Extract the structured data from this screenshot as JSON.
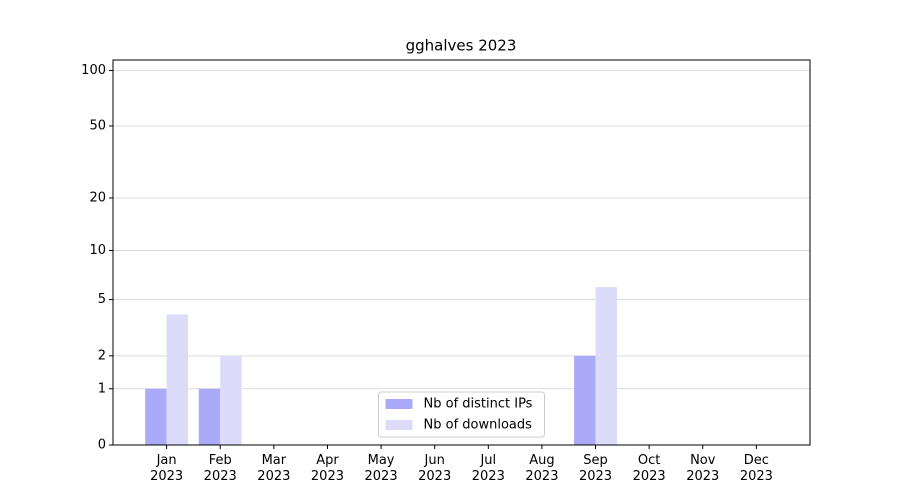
{
  "chart_data": {
    "type": "bar",
    "title": "gghalves 2023",
    "categories": [
      "Jan\n2023",
      "Feb\n2023",
      "Mar\n2023",
      "Apr\n2023",
      "May\n2023",
      "Jun\n2023",
      "Jul\n2023",
      "Aug\n2023",
      "Sep\n2023",
      "Oct\n2023",
      "Nov\n2023",
      "Dec\n2023"
    ],
    "series": [
      {
        "name": "Nb of distinct IPs",
        "color": "#aaaaf8",
        "values": [
          1,
          1,
          0,
          0,
          0,
          0,
          0,
          0,
          2,
          0,
          0,
          0
        ]
      },
      {
        "name": "Nb of downloads",
        "color": "#dcdcfa",
        "values": [
          4,
          2,
          0,
          0,
          0,
          0,
          0,
          0,
          6,
          0,
          0,
          0
        ]
      }
    ],
    "yscale": "log1p",
    "ylim": [
      0,
      114
    ],
    "yticks": [
      0,
      1,
      2,
      5,
      10,
      20,
      50,
      100
    ],
    "grid": true,
    "legend": "lower center"
  }
}
